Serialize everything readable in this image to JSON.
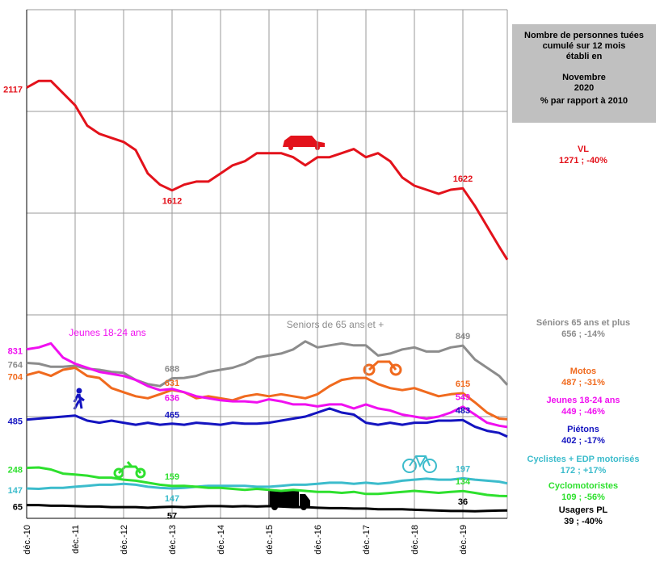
{
  "chart_data": {
    "type": "line",
    "info_box": [
      "Nombre de personnes tuées",
      "cumulé sur 12 mois",
      "établi en",
      "Novembre",
      "2020",
      "% par rapport à 2010"
    ],
    "x": [
      0,
      3,
      6,
      9,
      12,
      15,
      18,
      21,
      24,
      27,
      30,
      33,
      36,
      39,
      42,
      45,
      48,
      51,
      54,
      57,
      60,
      63,
      66,
      69,
      72,
      75,
      78,
      81,
      84,
      87,
      90,
      93,
      96,
      99,
      102,
      105,
      108,
      111,
      114,
      117,
      119
    ],
    "xlim": [
      0,
      119
    ],
    "xticks": [
      {
        "value": 0,
        "label": "déc.-10"
      },
      {
        "value": 12,
        "label": "déc.-11"
      },
      {
        "value": 24,
        "label": "déc.-12"
      },
      {
        "value": 36,
        "label": "déc.-13"
      },
      {
        "value": 48,
        "label": "déc.-14"
      },
      {
        "value": 60,
        "label": "déc.-15"
      },
      {
        "value": 72,
        "label": "déc.-16"
      },
      {
        "value": 84,
        "label": "déc.-17"
      },
      {
        "value": 96,
        "label": "déc.-18"
      },
      {
        "value": 108,
        "label": "déc.-19"
      }
    ],
    "ylim": [
      0,
      2500
    ],
    "yticks": [
      0,
      500,
      1000,
      1500,
      2000,
      2500
    ],
    "grid": true,
    "series": [
      {
        "name": "VL",
        "end_label": "1271 ; -40%",
        "color": "#e3121b",
        "values": [
          2117,
          2150,
          2150,
          2090,
          2030,
          1930,
          1890,
          1870,
          1850,
          1810,
          1695,
          1640,
          1612,
          1640,
          1655,
          1655,
          1695,
          1735,
          1755,
          1795,
          1795,
          1795,
          1775,
          1735,
          1775,
          1775,
          1795,
          1815,
          1775,
          1795,
          1755,
          1675,
          1635,
          1615,
          1595,
          1615,
          1622,
          1535,
          1435,
          1335,
          1271
        ],
        "annotations": [
          {
            "x": 0,
            "value": 2117
          },
          {
            "x": 36,
            "value": 1612
          },
          {
            "x": 108,
            "value": 1622
          }
        ]
      },
      {
        "name": "Séniors 65 ans et plus",
        "end_label": "656 ; -14%",
        "color": "#8c8c8c",
        "chart_label": "Seniors de 65 ans et +",
        "values": [
          764,
          760,
          745,
          745,
          750,
          735,
          730,
          720,
          715,
          680,
          660,
          650,
          688,
          690,
          700,
          720,
          730,
          740,
          760,
          790,
          800,
          810,
          830,
          870,
          840,
          850,
          860,
          850,
          850,
          800,
          810,
          830,
          840,
          820,
          820,
          840,
          849,
          780,
          740,
          700,
          656
        ],
        "annotations": [
          {
            "x": 0,
            "value": 764
          },
          {
            "x": 36,
            "value": 688
          },
          {
            "x": 108,
            "value": 849
          }
        ]
      },
      {
        "name": "Motos",
        "end_label": "487 ; -31%",
        "color": "#f06a1e",
        "values": [
          704,
          720,
          700,
          730,
          740,
          700,
          690,
          640,
          620,
          600,
          590,
          610,
          631,
          620,
          590,
          600,
          590,
          580,
          600,
          610,
          600,
          610,
          600,
          590,
          610,
          650,
          680,
          690,
          690,
          660,
          640,
          630,
          640,
          620,
          600,
          610,
          615,
          570,
          520,
          490,
          487
        ],
        "annotations": [
          {
            "x": 0,
            "value": 704
          },
          {
            "x": 36,
            "value": 631
          },
          {
            "x": 108,
            "value": 615
          }
        ]
      },
      {
        "name": "Jeunes 18-24 ans",
        "end_label": "449 ; -46%",
        "color": "#f010f0",
        "chart_label": "Jeunes 18-24 ans",
        "values": [
          831,
          840,
          860,
          790,
          760,
          740,
          720,
          710,
          700,
          680,
          650,
          630,
          636,
          620,
          600,
          590,
          580,
          575,
          575,
          570,
          585,
          575,
          560,
          560,
          550,
          560,
          560,
          540,
          560,
          540,
          530,
          510,
          500,
          490,
          500,
          520,
          549,
          510,
          470,
          455,
          449
        ],
        "annotations": [
          {
            "x": 0,
            "value": 831
          },
          {
            "x": 36,
            "value": 636
          },
          {
            "x": 108,
            "value": 549
          }
        ]
      },
      {
        "name": "Piétons",
        "end_label": "402 ; -17%",
        "color": "#1414c0",
        "values": [
          485,
          490,
          495,
          500,
          505,
          480,
          470,
          480,
          470,
          460,
          470,
          460,
          465,
          460,
          470,
          465,
          460,
          470,
          465,
          465,
          470,
          480,
          490,
          500,
          520,
          540,
          520,
          510,
          470,
          460,
          470,
          460,
          470,
          470,
          480,
          480,
          483,
          450,
          430,
          420,
          402
        ],
        "annotations": [
          {
            "x": 0,
            "value": 485
          },
          {
            "x": 36,
            "value": 465
          },
          {
            "x": 108,
            "value": 483
          }
        ]
      },
      {
        "name": "Cyclistes + EDP motorisés",
        "end_label": "172 ; +17%",
        "color": "#3cbccc",
        "values": [
          147,
          145,
          150,
          150,
          155,
          160,
          165,
          165,
          170,
          165,
          155,
          150,
          147,
          150,
          155,
          160,
          160,
          160,
          160,
          155,
          155,
          160,
          165,
          165,
          170,
          175,
          175,
          170,
          175,
          170,
          175,
          185,
          190,
          195,
          190,
          190,
          197,
          190,
          185,
          180,
          172
        ],
        "annotations": [
          {
            "x": 0,
            "value": 147
          },
          {
            "x": 36,
            "value": 147
          },
          {
            "x": 108,
            "value": 197
          }
        ]
      },
      {
        "name": "Cyclomotoristes",
        "end_label": "109 ; -56%",
        "color": "#2ee02e",
        "values": [
          248,
          250,
          240,
          220,
          215,
          210,
          200,
          200,
          190,
          185,
          175,
          165,
          159,
          160,
          155,
          150,
          150,
          145,
          140,
          145,
          140,
          135,
          140,
          135,
          130,
          130,
          125,
          130,
          120,
          120,
          125,
          130,
          135,
          130,
          125,
          130,
          134,
          125,
          115,
          110,
          109
        ],
        "annotations": [
          {
            "x": 0,
            "value": 248
          },
          {
            "x": 36,
            "value": 159
          },
          {
            "x": 108,
            "value": 134
          }
        ]
      },
      {
        "name": "Usagers PL",
        "end_label": "39 ; -40%",
        "color": "#000000",
        "values": [
          65,
          65,
          62,
          62,
          60,
          58,
          58,
          55,
          55,
          55,
          52,
          55,
          57,
          55,
          58,
          60,
          60,
          58,
          60,
          58,
          60,
          58,
          55,
          55,
          52,
          50,
          50,
          48,
          48,
          45,
          45,
          45,
          42,
          40,
          38,
          36,
          36,
          35,
          37,
          38,
          39
        ],
        "annotations": [
          {
            "x": 0,
            "value": 65
          },
          {
            "x": 36,
            "value": 57
          },
          {
            "x": 108,
            "value": 36
          }
        ]
      }
    ]
  }
}
